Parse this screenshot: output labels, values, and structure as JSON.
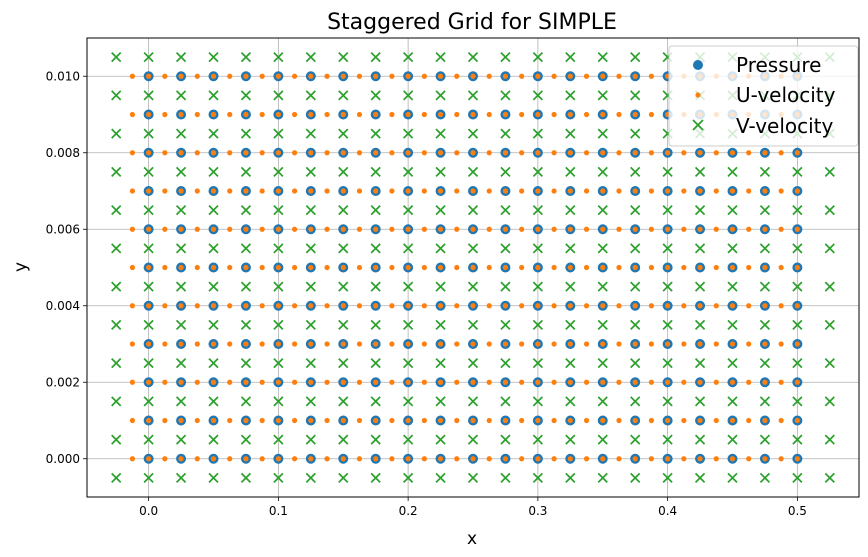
{
  "chart_data": {
    "type": "scatter",
    "title": "Staggered Grid for SIMPLE",
    "xlabel": "x",
    "ylabel": "y",
    "xlim": [
      -0.0475,
      0.5475
    ],
    "ylim": [
      -0.001,
      0.011
    ],
    "x_ticks": [
      0.0,
      0.1,
      0.2,
      0.3,
      0.4,
      0.5
    ],
    "x_tick_labels": [
      "0.0",
      "0.1",
      "0.2",
      "0.3",
      "0.4",
      "0.5"
    ],
    "y_ticks": [
      0.0,
      0.002,
      0.004,
      0.006,
      0.008,
      0.01
    ],
    "y_tick_labels": [
      "0.000",
      "0.002",
      "0.004",
      "0.006",
      "0.008",
      "0.010"
    ],
    "grid": true,
    "legend_position": "upper-right",
    "series": [
      {
        "name": "Pressure",
        "marker": "circle",
        "color": "#1f77b4",
        "x": {
          "start": 0.0,
          "step": 0.025,
          "count": 21
        },
        "y": {
          "start": 0.0,
          "step": 0.001,
          "count": 11
        }
      },
      {
        "name": "U-velocity",
        "marker": "small-circle",
        "color": "#ff7f0e",
        "x": {
          "start": -0.0125,
          "step": 0.0125,
          "count": 42
        },
        "y": {
          "start": 0.0,
          "step": 0.001,
          "count": 11
        }
      },
      {
        "name": "V-velocity",
        "marker": "x",
        "color": "#2ca02c",
        "x": {
          "start": -0.025,
          "step": 0.025,
          "count": 23
        },
        "y": {
          "start": -0.0005,
          "step": 0.001,
          "count": 12
        }
      }
    ]
  }
}
